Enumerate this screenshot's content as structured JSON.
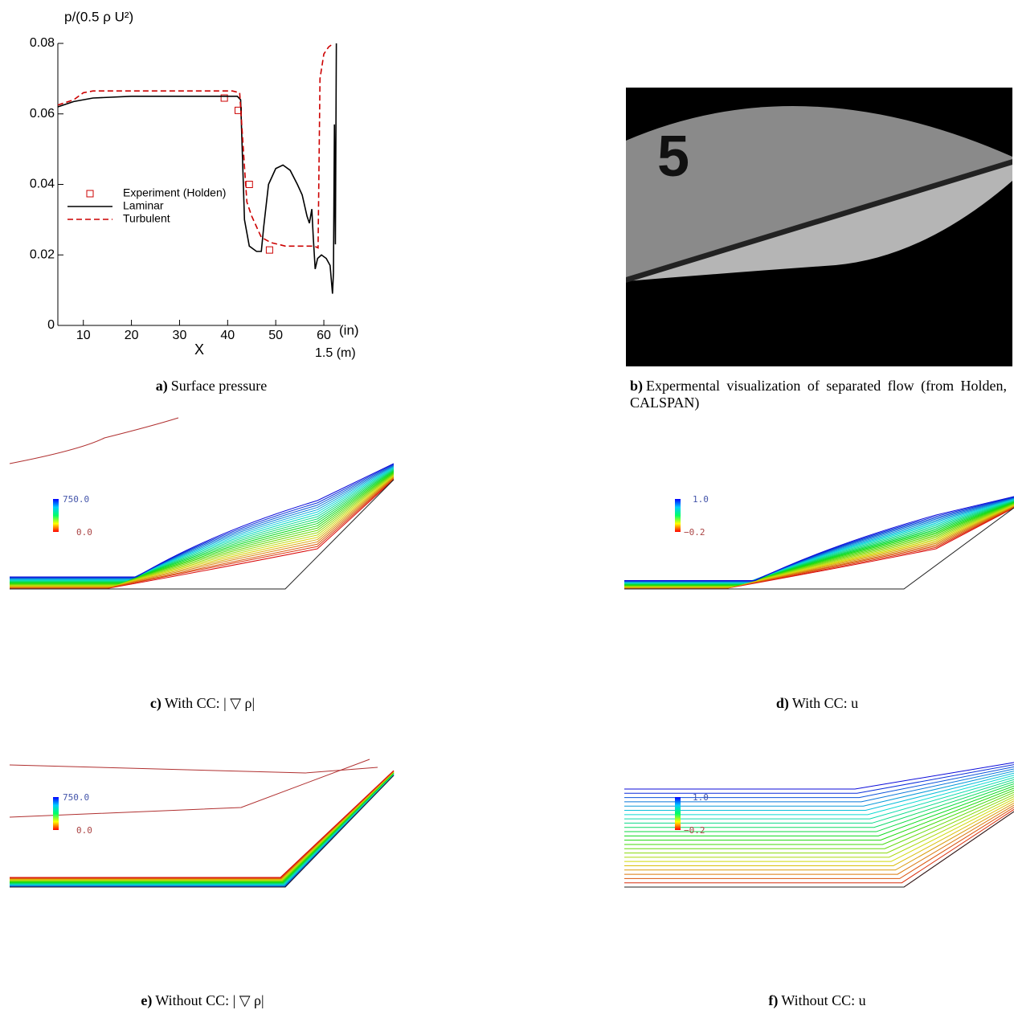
{
  "chart_data": {
    "type": "line",
    "y_label": "p/(0.5 ρ U²)",
    "x_label": "X",
    "x_unit": "(in)",
    "x2_label": "1.5 (m)",
    "xlim": [
      4.7,
      63.5
    ],
    "ylim": [
      0,
      0.08
    ],
    "xticks": [
      10,
      20,
      30,
      40,
      50,
      60
    ],
    "yticks": [
      0,
      0.02,
      0.04,
      0.06,
      0.08
    ],
    "legend_position": "center-left",
    "series": [
      {
        "name": "Experiment (Holden)",
        "color": "#cc0000",
        "marker": "square",
        "x": [
          39.3,
          42.2,
          44.5,
          48.7
        ],
        "values": [
          0.0645,
          0.061,
          0.04,
          0.0214
        ]
      },
      {
        "name": "Laminar",
        "color": "#000000",
        "dash": false,
        "x": [
          4.7,
          8,
          12,
          20,
          42,
          42.7,
          43.5,
          44.5,
          46,
          47,
          47.5,
          48.5,
          50,
          51.5,
          53,
          54.5,
          55.5,
          56.5,
          57,
          57.5,
          57.8,
          58.2,
          58.7,
          59.5,
          60.5,
          61.3,
          61.8,
          62,
          62.2,
          62.4,
          62.6
        ],
        "values": [
          0.062,
          0.0635,
          0.0645,
          0.065,
          0.065,
          0.064,
          0.03,
          0.0225,
          0.021,
          0.021,
          0.028,
          0.04,
          0.0445,
          0.0455,
          0.044,
          0.04,
          0.037,
          0.031,
          0.029,
          0.033,
          0.025,
          0.016,
          0.019,
          0.02,
          0.019,
          0.017,
          0.009,
          0.015,
          0.057,
          0.023,
          0.08
        ]
      },
      {
        "name": "Turbulent",
        "color": "#cc0000",
        "dash": true,
        "x": [
          4.7,
          8,
          10,
          12,
          20,
          41,
          42.5,
          43.5,
          44,
          45,
          47,
          49,
          52,
          58,
          58.8,
          59.2,
          60,
          61,
          62
        ],
        "values": [
          0.0625,
          0.064,
          0.066,
          0.0665,
          0.0665,
          0.0665,
          0.066,
          0.045,
          0.035,
          0.031,
          0.025,
          0.0235,
          0.0225,
          0.0225,
          0.022,
          0.07,
          0.077,
          0.079,
          0.08
        ]
      }
    ]
  },
  "photo_label": "5",
  "colorbars": {
    "c": {
      "max": "750.0",
      "min": "0.0"
    },
    "d": {
      "max": "1.0",
      "min": "−0.2"
    },
    "e": {
      "max": "750.0",
      "min": "0.0"
    },
    "f": {
      "max": "1.0",
      "min": "−0.2"
    }
  },
  "captions": {
    "a": {
      "label": "a)",
      "text": "Surface pressure"
    },
    "b": {
      "label": "b)",
      "text": "Expermental visualization of separated flow (from Holden, CALSPAN)"
    },
    "c": {
      "label": "c)",
      "text": "With CC: | ▽ ρ|"
    },
    "d": {
      "label": "d)",
      "text": "With CC: u"
    },
    "e": {
      "label": "e)",
      "text": "Without CC: | ▽ ρ|"
    },
    "f": {
      "label": "f)",
      "text": "Without CC: u"
    }
  }
}
